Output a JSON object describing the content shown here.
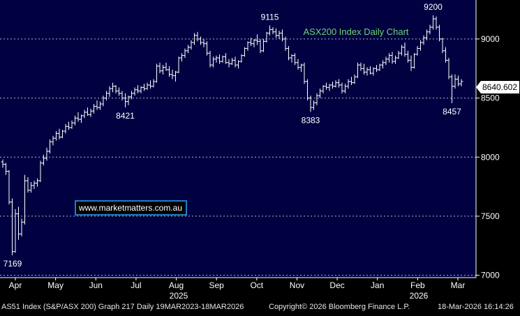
{
  "chart_data": {
    "type": "bar",
    "subtype": "ohlc",
    "title": "ASX200 Index Daily Chart",
    "watermark": "www.marketmatters.com.au",
    "last_price": "8640.602",
    "ylim": [
      6980,
      9330
    ],
    "yticks": [
      "7000",
      "7500",
      "8000",
      "8500",
      "9000"
    ],
    "grid": true,
    "x_month_labels": [
      "Apr",
      "May",
      "Jun",
      "Jul",
      "Aug",
      "Sep",
      "Oct",
      "Nov",
      "Dec",
      "Jan",
      "Feb",
      "Mar"
    ],
    "year_labels": [
      "2025",
      "2026"
    ],
    "annotations": [
      "7169",
      "8421",
      "9115",
      "8383",
      "9200",
      "8457"
    ],
    "colors": {
      "background": "#010142",
      "grid": "#b4b4c8",
      "bars": "#ffffff",
      "title": "#6fd36f",
      "watermark_border": "#2aa8ff",
      "price_box": "#ffffff"
    },
    "series": [
      {
        "values": [
          [
            7960,
            7980,
            7910,
            7940
          ],
          [
            7940,
            7950,
            7850,
            7880
          ],
          [
            7880,
            7890,
            7600,
            7620
          ],
          [
            7620,
            7650,
            7169,
            7200
          ],
          [
            7200,
            7560,
            7190,
            7520
          ],
          [
            7520,
            7580,
            7300,
            7350
          ],
          [
            7350,
            7480,
            7330,
            7450
          ],
          [
            7450,
            7850,
            7430,
            7800
          ],
          [
            7800,
            7830,
            7700,
            7720
          ],
          [
            7720,
            7790,
            7700,
            7760
          ],
          [
            7760,
            7800,
            7730,
            7780
          ],
          [
            7780,
            7820,
            7750,
            7800
          ],
          [
            7800,
            7970,
            7790,
            7950
          ],
          [
            7950,
            8020,
            7930,
            7990
          ],
          [
            7990,
            8080,
            7970,
            8050
          ],
          [
            8050,
            8150,
            8030,
            8130
          ],
          [
            8130,
            8180,
            8100,
            8160
          ],
          [
            8160,
            8220,
            8140,
            8200
          ],
          [
            8200,
            8240,
            8150,
            8170
          ],
          [
            8170,
            8230,
            8160,
            8220
          ],
          [
            8220,
            8280,
            8200,
            8260
          ],
          [
            8260,
            8300,
            8230,
            8250
          ],
          [
            8250,
            8310,
            8240,
            8290
          ],
          [
            8290,
            8350,
            8270,
            8330
          ],
          [
            8330,
            8380,
            8300,
            8320
          ],
          [
            8320,
            8360,
            8290,
            8350
          ],
          [
            8350,
            8400,
            8330,
            8380
          ],
          [
            8380,
            8420,
            8350,
            8360
          ],
          [
            8360,
            8410,
            8340,
            8390
          ],
          [
            8390,
            8450,
            8370,
            8430
          ],
          [
            8430,
            8480,
            8400,
            8420
          ],
          [
            8420,
            8470,
            8400,
            8450
          ],
          [
            8450,
            8520,
            8430,
            8500
          ],
          [
            8500,
            8560,
            8480,
            8540
          ],
          [
            8540,
            8600,
            8510,
            8580
          ],
          [
            8580,
            8630,
            8550,
            8600
          ],
          [
            8600,
            8610,
            8540,
            8560
          ],
          [
            8560,
            8590,
            8520,
            8540
          ],
          [
            8540,
            8560,
            8480,
            8500
          ],
          [
            8500,
            8540,
            8421,
            8470
          ],
          [
            8470,
            8520,
            8440,
            8510
          ],
          [
            8510,
            8560,
            8490,
            8540
          ],
          [
            8540,
            8590,
            8520,
            8570
          ],
          [
            8570,
            8610,
            8540,
            8560
          ],
          [
            8560,
            8600,
            8540,
            8590
          ],
          [
            8590,
            8620,
            8560,
            8580
          ],
          [
            8580,
            8630,
            8570,
            8610
          ],
          [
            8610,
            8650,
            8580,
            8600
          ],
          [
            8600,
            8660,
            8590,
            8640
          ],
          [
            8640,
            8790,
            8630,
            8770
          ],
          [
            8770,
            8800,
            8710,
            8730
          ],
          [
            8730,
            8780,
            8700,
            8760
          ],
          [
            8760,
            8800,
            8730,
            8740
          ],
          [
            8740,
            8770,
            8680,
            8700
          ],
          [
            8700,
            8740,
            8660,
            8690
          ],
          [
            8690,
            8730,
            8640,
            8720
          ],
          [
            8720,
            8850,
            8710,
            8840
          ],
          [
            8840,
            8880,
            8810,
            8860
          ],
          [
            8860,
            8920,
            8840,
            8900
          ],
          [
            8900,
            8950,
            8880,
            8930
          ],
          [
            8930,
            8990,
            8910,
            8970
          ],
          [
            8970,
            9050,
            8950,
            9030
          ],
          [
            9030,
            9060,
            8980,
            9000
          ],
          [
            9000,
            9020,
            8950,
            8970
          ],
          [
            8970,
            9000,
            8930,
            8960
          ],
          [
            8960,
            8980,
            8860,
            8880
          ],
          [
            8880,
            8900,
            8760,
            8780
          ],
          [
            8780,
            8850,
            8760,
            8830
          ],
          [
            8830,
            8860,
            8800,
            8840
          ],
          [
            8840,
            8870,
            8790,
            8810
          ],
          [
            8810,
            8860,
            8800,
            8850
          ],
          [
            8850,
            8880,
            8790,
            8800
          ],
          [
            8800,
            8830,
            8760,
            8790
          ],
          [
            8790,
            8840,
            8780,
            8820
          ],
          [
            8820,
            8850,
            8760,
            8780
          ],
          [
            8780,
            8820,
            8750,
            8810
          ],
          [
            8810,
            8870,
            8800,
            8860
          ],
          [
            8860,
            8930,
            8850,
            8920
          ],
          [
            8920,
            8980,
            8900,
            8970
          ],
          [
            8970,
            9010,
            8940,
            8960
          ],
          [
            8960,
            9000,
            8930,
            8990
          ],
          [
            8990,
            9040,
            8950,
            8980
          ],
          [
            8980,
            9000,
            8880,
            8900
          ],
          [
            8900,
            9000,
            8890,
            8980
          ],
          [
            8980,
            9060,
            8970,
            9050
          ],
          [
            9050,
            9115,
            9030,
            9080
          ],
          [
            9080,
            9100,
            9040,
            9060
          ],
          [
            9060,
            9090,
            9010,
            9030
          ],
          [
            9030,
            9070,
            9000,
            9050
          ],
          [
            9050,
            9080,
            8980,
            9000
          ],
          [
            9000,
            9020,
            8900,
            8920
          ],
          [
            8920,
            8940,
            8820,
            8840
          ],
          [
            8840,
            8870,
            8800,
            8860
          ],
          [
            8860,
            8880,
            8780,
            8800
          ],
          [
            8800,
            8830,
            8740,
            8760
          ],
          [
            8760,
            8790,
            8720,
            8780
          ],
          [
            8780,
            8800,
            8620,
            8640
          ],
          [
            8640,
            8660,
            8480,
            8500
          ],
          [
            8500,
            8520,
            8383,
            8420
          ],
          [
            8420,
            8480,
            8400,
            8460
          ],
          [
            8460,
            8540,
            8440,
            8520
          ],
          [
            8520,
            8580,
            8500,
            8560
          ],
          [
            8560,
            8610,
            8540,
            8600
          ],
          [
            8600,
            8630,
            8570,
            8590
          ],
          [
            8590,
            8620,
            8560,
            8610
          ],
          [
            8610,
            8640,
            8580,
            8600
          ],
          [
            8600,
            8650,
            8590,
            8630
          ],
          [
            8630,
            8660,
            8590,
            8610
          ],
          [
            8610,
            8630,
            8540,
            8560
          ],
          [
            8560,
            8620,
            8540,
            8600
          ],
          [
            8600,
            8660,
            8580,
            8640
          ],
          [
            8640,
            8680,
            8610,
            8630
          ],
          [
            8630,
            8700,
            8620,
            8680
          ],
          [
            8680,
            8800,
            8670,
            8780
          ],
          [
            8780,
            8800,
            8730,
            8750
          ],
          [
            8750,
            8790,
            8700,
            8720
          ],
          [
            8720,
            8760,
            8690,
            8740
          ],
          [
            8740,
            8770,
            8700,
            8710
          ],
          [
            8710,
            8760,
            8690,
            8750
          ],
          [
            8750,
            8780,
            8720,
            8740
          ],
          [
            8740,
            8790,
            8730,
            8780
          ],
          [
            8780,
            8820,
            8750,
            8800
          ],
          [
            8800,
            8850,
            8780,
            8830
          ],
          [
            8830,
            8880,
            8800,
            8860
          ],
          [
            8860,
            8890,
            8790,
            8810
          ],
          [
            8810,
            8860,
            8790,
            8840
          ],
          [
            8840,
            8900,
            8830,
            8880
          ],
          [
            8880,
            8950,
            8860,
            8930
          ],
          [
            8930,
            8970,
            8850,
            8870
          ],
          [
            8870,
            8900,
            8800,
            8820
          ],
          [
            8820,
            8860,
            8730,
            8760
          ],
          [
            8760,
            8880,
            8750,
            8870
          ],
          [
            8870,
            8940,
            8860,
            8920
          ],
          [
            8920,
            8990,
            8900,
            8970
          ],
          [
            8970,
            9030,
            8950,
            9010
          ],
          [
            9010,
            9080,
            8990,
            9060
          ],
          [
            9060,
            9120,
            9040,
            9100
          ],
          [
            9100,
            9200,
            9080,
            9170
          ],
          [
            9170,
            9190,
            9080,
            9100
          ],
          [
            9100,
            9120,
            8980,
            9000
          ],
          [
            9000,
            9010,
            8880,
            8900
          ],
          [
            8900,
            8930,
            8800,
            8820
          ],
          [
            8820,
            8840,
            8660,
            8680
          ],
          [
            8680,
            8700,
            8457,
            8600
          ],
          [
            8600,
            8700,
            8580,
            8660
          ],
          [
            8660,
            8690,
            8600,
            8620
          ],
          [
            8620,
            8660,
            8600,
            8640
          ]
        ]
      }
    ]
  },
  "footer": {
    "left": "AS51 Index (S&P/ASX 200) Graph 217 Daily 19MAR2023-18MAR2026",
    "center": "Copyright© 2026 Bloomberg Finance L.P.",
    "right": "18-Mar-2026 16:14:26"
  }
}
